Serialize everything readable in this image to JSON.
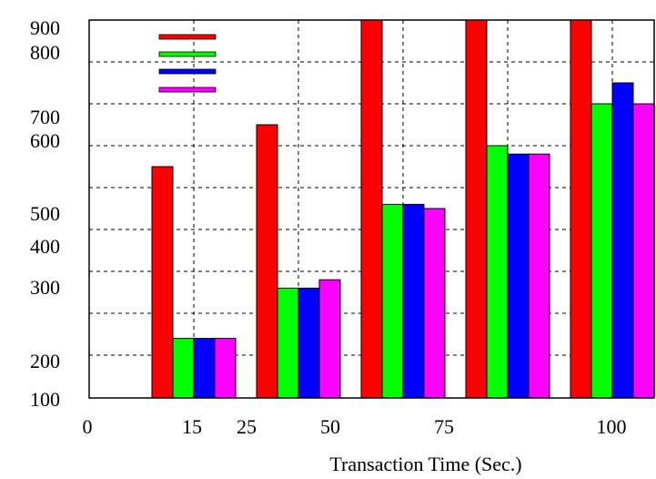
{
  "chart_data": {
    "type": "bar",
    "title": "",
    "xlabel": "Transaction Time (Sec.)",
    "ylabel": "",
    "grid": true,
    "legend_position": "top-left",
    "categories": [
      "15",
      "25",
      "50",
      "75",
      "100"
    ],
    "x_tick_labels": [
      "0",
      "15",
      "25",
      "50",
      "75",
      "100"
    ],
    "y_tick_labels": [
      "100",
      "200",
      "300",
      "400",
      "500",
      "600",
      "700",
      "800",
      "900"
    ],
    "series": [
      {
        "name": "",
        "color": "#ff0000",
        "values": [
          550,
          650,
          950,
          950,
          950
        ]
      },
      {
        "name": "",
        "color": "#00ff00",
        "values": [
          220,
          280,
          460,
          600,
          700
        ]
      },
      {
        "name": "",
        "color": "#0000ff",
        "values": [
          220,
          280,
          460,
          580,
          750
        ]
      },
      {
        "name": "",
        "color": "#ff00ff",
        "values": [
          220,
          290,
          450,
          580,
          700
        ]
      }
    ]
  }
}
